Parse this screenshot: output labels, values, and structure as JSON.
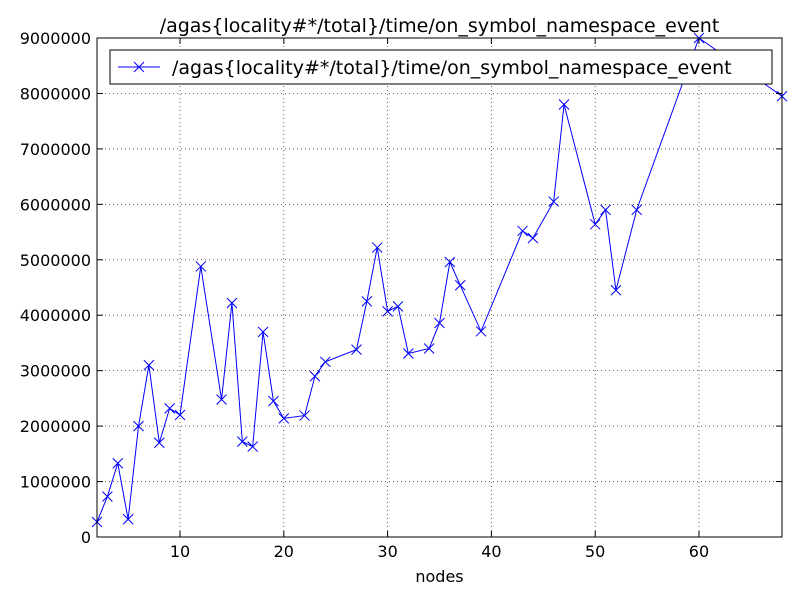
{
  "chart_data": {
    "type": "line",
    "title": "/agas{locality#*/total}/time/on_symbol_namespace_event",
    "xlabel": "nodes",
    "ylabel": "",
    "xlim": [
      2,
      68
    ],
    "ylim": [
      0,
      9000000
    ],
    "x_ticks": [
      10,
      20,
      30,
      40,
      50,
      60
    ],
    "y_ticks": [
      0,
      1000000,
      2000000,
      3000000,
      4000000,
      5000000,
      6000000,
      7000000,
      8000000,
      9000000
    ],
    "grid": true,
    "legend_position": "top",
    "color": "#0000ff",
    "marker": "x",
    "series": [
      {
        "name": "/agas{locality#*/total}/time/on_symbol_namespace_event",
        "x": [
          2,
          3,
          4,
          5,
          6,
          7,
          8,
          9,
          10,
          12,
          14,
          15,
          16,
          17,
          18,
          19,
          20,
          22,
          23,
          24,
          27,
          28,
          29,
          30,
          31,
          32,
          34,
          35,
          36,
          37,
          39,
          43,
          44,
          46,
          47,
          50,
          51,
          52,
          54,
          60,
          68
        ],
        "values": [
          270000,
          730000,
          1330000,
          320000,
          2000000,
          3100000,
          1700000,
          2320000,
          2200000,
          4880000,
          2480000,
          4220000,
          1720000,
          1630000,
          3700000,
          2450000,
          2140000,
          2190000,
          2900000,
          3160000,
          3380000,
          4250000,
          5220000,
          4070000,
          4160000,
          3310000,
          3400000,
          3860000,
          4960000,
          4540000,
          3710000,
          5520000,
          5390000,
          6050000,
          7800000,
          5640000,
          5900000,
          4450000,
          5900000,
          9000000,
          7950000
        ]
      }
    ]
  }
}
